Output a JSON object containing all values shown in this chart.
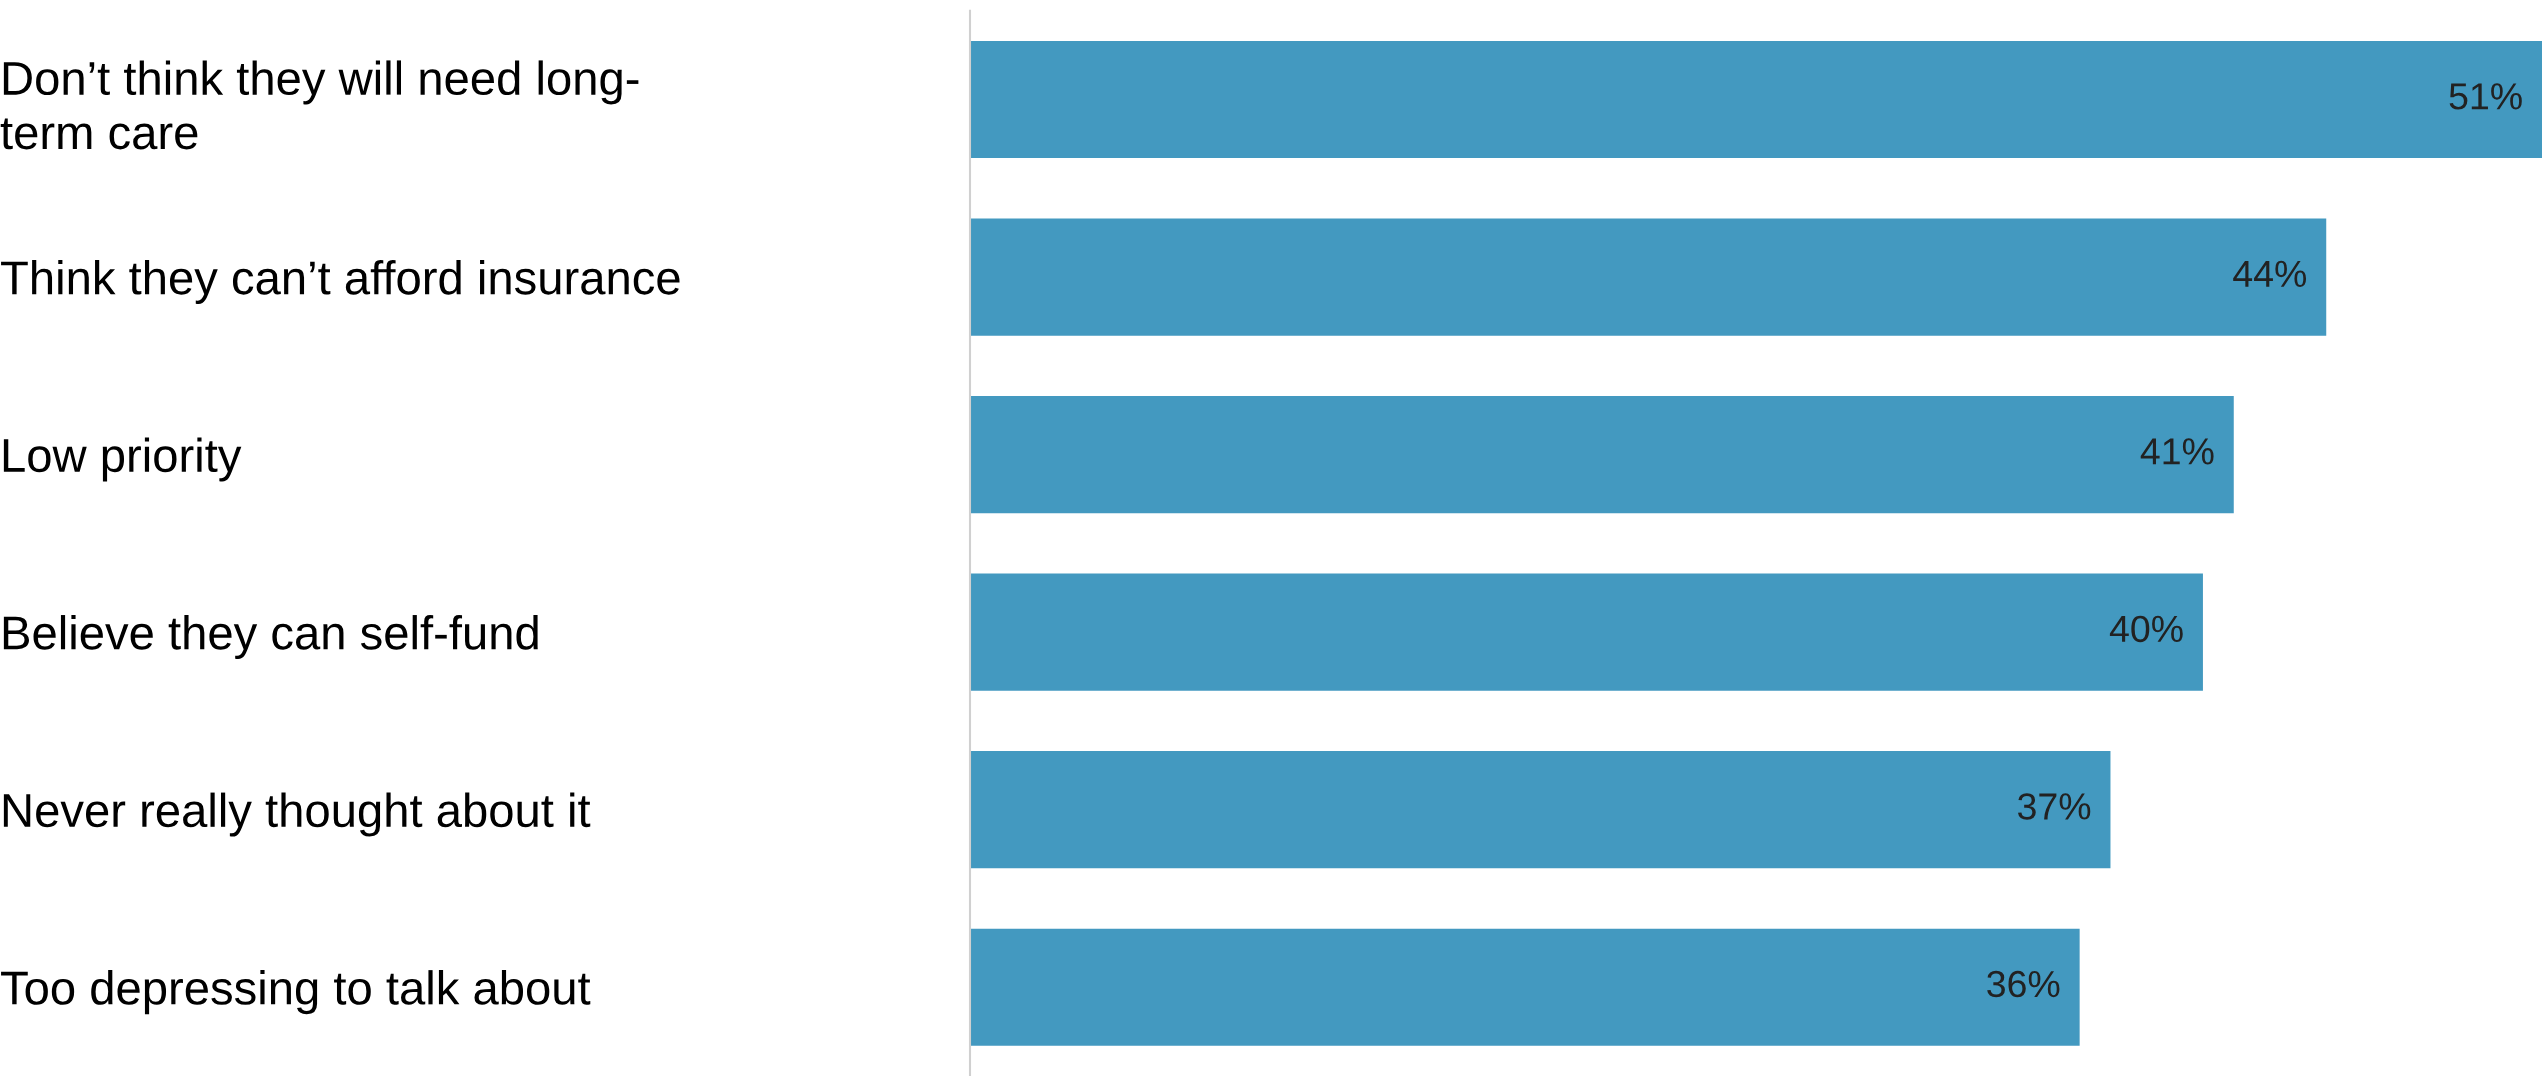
{
  "chart_data": {
    "type": "bar",
    "orientation": "horizontal",
    "categories": [
      "Don’t think they will need long-\nterm care",
      "Think they can’t afford insurance",
      "Low priority",
      "Believe they can self-fund",
      "Never really thought about it",
      "Too depressing to talk about"
    ],
    "values": [
      51,
      44,
      41,
      40,
      37,
      36
    ],
    "value_labels": [
      "51%",
      "44%",
      "41%",
      "40%",
      "37%",
      "36%"
    ],
    "color": "#4399c0",
    "grid": false,
    "legend": false
  }
}
